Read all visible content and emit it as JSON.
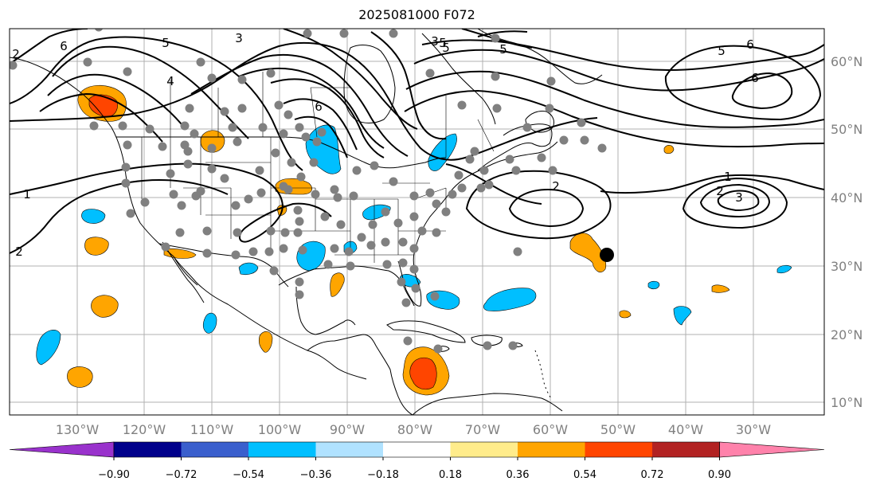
{
  "title": "2025081000 F072",
  "axes": {
    "lon_labels": [
      "130°W",
      "120°W",
      "110°W",
      "100°W",
      "90°W",
      "80°W",
      "70°W",
      "60°W",
      "50°W",
      "40°W",
      "30°W"
    ],
    "lat_labels": [
      "60°N",
      "50°N",
      "40°N",
      "30°N",
      "20°N",
      "10°N"
    ]
  },
  "colorbar": {
    "ticks": [
      "−0.90",
      "−0.72",
      "−0.54",
      "−0.36",
      "−0.18",
      "0.18",
      "0.36",
      "0.54",
      "0.72",
      "0.90"
    ],
    "colors": [
      "#9932cc",
      "#00008b",
      "#3a5fcd",
      "#00bfff",
      "#b0e2ff",
      "#ffffff",
      "#ffec8b",
      "#ffa500",
      "#ff4500",
      "#b22222",
      "#ff82ab"
    ],
    "extend": "both"
  },
  "contour_labels": [
    "2",
    "6",
    "5",
    "3",
    "4",
    "6",
    "5",
    "3",
    "5",
    "6",
    "5",
    "6",
    "5",
    "1",
    "2",
    "2",
    "1",
    "2",
    "3"
  ],
  "marker": {
    "color": "#000000",
    "name": "tropical-storm-position"
  },
  "station_dot_color": "#808080"
}
